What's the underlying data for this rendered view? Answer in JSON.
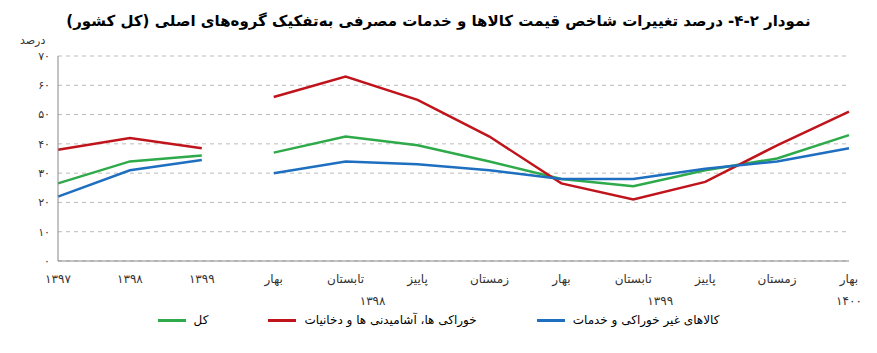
{
  "chart_data": {
    "type": "line",
    "title": "نمودار ۲-۴- درصد تغییرات شاخص قیمت کالاها و خدمات مصرفی به‌تفکیک گروه‌های اصلی (کل کشور)",
    "y_label": "درصد",
    "categories": [
      "۱۳۹۷",
      "۱۳۹۸",
      "۱۳۹۹",
      "بهار",
      "تابستان",
      "پاییز",
      "زمستان",
      "بهار",
      "تابستان",
      "پاییز",
      "زمستان",
      "بهار"
    ],
    "category_groups": [
      null,
      null,
      null,
      "۱۳۹۸",
      "۱۳۹۸",
      "۱۳۹۸",
      "۱۳۹۸",
      "۱۳۹۹",
      "۱۳۹۹",
      "۱۳۹۹",
      "۱۳۹۹",
      "۱۴۰۰"
    ],
    "series": [
      {
        "name": "کل",
        "color": "#2eaa4a",
        "values": [
          26.5,
          34,
          36,
          37,
          42.5,
          39.5,
          34,
          28,
          25.5,
          31,
          35,
          43
        ]
      },
      {
        "name": "خوراکی ها، آشامیدنی ها و دخانیات",
        "color": "#c0141c",
        "values": [
          38,
          42,
          38.5,
          56,
          63,
          55,
          42.5,
          26.5,
          21,
          27,
          39.5,
          51
        ]
      },
      {
        "name": "کالاهای غیر خوراکی و خدمات",
        "color": "#1f6fc0",
        "values": [
          22,
          31,
          34.5,
          30,
          34,
          33,
          31,
          28,
          28,
          31.5,
          34,
          38.5
        ]
      }
    ],
    "ylim": [
      0,
      70
    ],
    "yticks": [
      {
        "value": 0,
        "label": "٠"
      },
      {
        "value": 10,
        "label": "۱۰"
      },
      {
        "value": 20,
        "label": "۲۰"
      },
      {
        "value": 30,
        "label": "۳۰"
      },
      {
        "value": 40,
        "label": "۴۰"
      },
      {
        "value": 50,
        "label": "۵۰"
      },
      {
        "value": 60,
        "label": "۶۰"
      },
      {
        "value": 70,
        "label": "۷۰"
      }
    ],
    "grid": true
  }
}
